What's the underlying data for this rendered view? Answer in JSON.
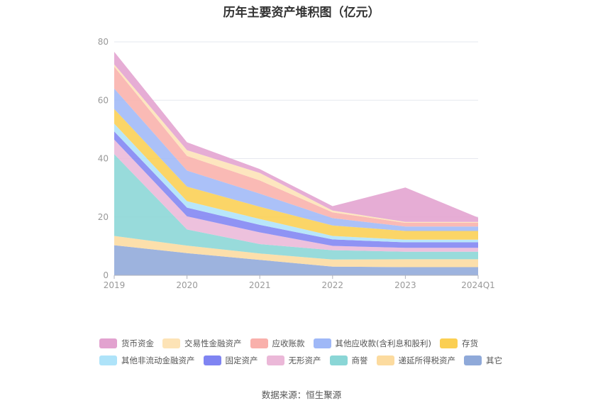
{
  "title": "历年主要资产堆积图（亿元）",
  "source": "数据来源：恒生聚源",
  "chart_data": {
    "type": "area",
    "stacked": true,
    "categories": [
      "2019",
      "2020",
      "2021",
      "2022",
      "2023",
      "2024Q1"
    ],
    "ylim": [
      0,
      80
    ],
    "yticks": [
      0,
      20,
      40,
      60,
      80
    ],
    "grid": true,
    "legend_position": "bottom",
    "series": [
      {
        "name": "其它",
        "color": "#8fa9d9",
        "values": [
          10.3,
          7.6,
          5.3,
          3.0,
          2.8,
          2.8
        ]
      },
      {
        "name": "递延所得税资产",
        "color": "#fcdb9f",
        "values": [
          3.2,
          2.6,
          2.2,
          2.4,
          2.7,
          2.7
        ]
      },
      {
        "name": "商誉",
        "color": "#8ad6d6",
        "values": [
          28.0,
          5.5,
          3.2,
          3.2,
          2.6,
          2.6
        ]
      },
      {
        "name": "无形资产",
        "color": "#ebb8d8",
        "values": [
          5.0,
          4.5,
          4.0,
          1.5,
          1.3,
          1.3
        ]
      },
      {
        "name": "固定资产",
        "color": "#7f84f2",
        "values": [
          2.8,
          3.0,
          2.6,
          2.2,
          1.9,
          1.9
        ]
      },
      {
        "name": "其他非流动金融资产",
        "color": "#aee3f9",
        "values": [
          2.7,
          2.2,
          2.0,
          1.2,
          0.9,
          0.9
        ]
      },
      {
        "name": "存货",
        "color": "#fbcf52",
        "values": [
          5.0,
          5.0,
          4.2,
          3.6,
          3.0,
          3.0
        ]
      },
      {
        "name": "其他应收款(含利息和股利)",
        "color": "#9fb8f7",
        "values": [
          7.0,
          5.5,
          4.5,
          2.5,
          1.5,
          1.5
        ]
      },
      {
        "name": "应收账款",
        "color": "#f9b0ab",
        "values": [
          7.5,
          5.0,
          4.5,
          2.0,
          1.3,
          1.3
        ]
      },
      {
        "name": "交易性金融资产",
        "color": "#fde3b6",
        "values": [
          0.8,
          2.0,
          2.6,
          0.6,
          0.3,
          0.3
        ]
      },
      {
        "name": "货币资金",
        "color": "#e2a2cf",
        "values": [
          4.3,
          2.7,
          1.3,
          1.5,
          11.8,
          1.5
        ]
      }
    ]
  }
}
